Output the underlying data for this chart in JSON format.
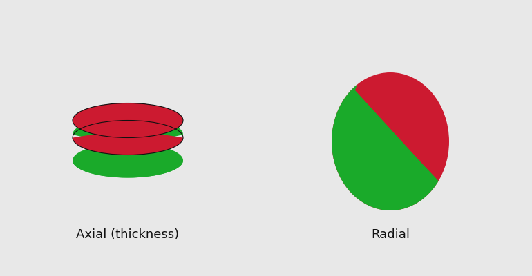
{
  "bg_color": "#e8e8e8",
  "red_color": "#cc1a30",
  "green_color": "#1aaa2a",
  "black_color": "#111111",
  "label_left": "Axial (thickness)",
  "label_right": "Radial",
  "label_fontsize": 13,
  "figsize": [
    7.7,
    4.0
  ],
  "dpi": 100
}
